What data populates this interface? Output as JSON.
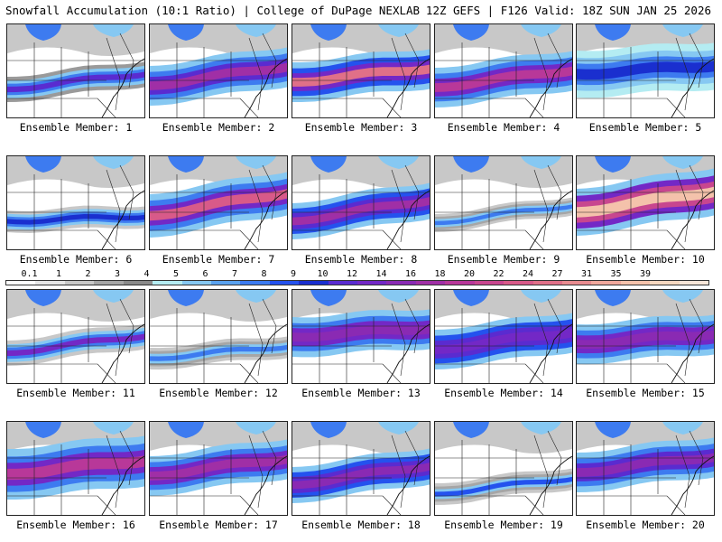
{
  "header": {
    "title": "Snowfall Accumulation (10:1 Ratio) | College of DuPage NEXLAB",
    "run_info": "12Z GEFS | F126 Valid: 18Z SUN JAN 25 2026"
  },
  "legend": {
    "labels": [
      "0.1",
      "1",
      "2",
      "3",
      "4",
      "5",
      "6",
      "7",
      "8",
      "9",
      "10",
      "12",
      "14",
      "16",
      "18",
      "20",
      "22",
      "24",
      "27",
      "31",
      "35",
      "39"
    ],
    "colors": [
      "#ffffff",
      "#e6e6e6",
      "#c8c8c8",
      "#a6a6a6",
      "#8a8a8a",
      "#b4ecf2",
      "#86c8f2",
      "#5aa2ef",
      "#3d7bf0",
      "#2452ee",
      "#1a2fcf",
      "#5a2bd0",
      "#7328c6",
      "#8a2ab3",
      "#a02fa6",
      "#b83899",
      "#c8468f",
      "#d85a89",
      "#e07088",
      "#e88c90",
      "#f0a89c",
      "#f4c2ab",
      "#f6d8c0",
      "#f8e6d8"
    ]
  },
  "members": [
    {
      "label": "Ensemble Member: 1"
    },
    {
      "label": "Ensemble Member: 2"
    },
    {
      "label": "Ensemble Member: 3"
    },
    {
      "label": "Ensemble Member: 4"
    },
    {
      "label": "Ensemble Member: 5"
    },
    {
      "label": "Ensemble Member: 6"
    },
    {
      "label": "Ensemble Member: 7"
    },
    {
      "label": "Ensemble Member: 8"
    },
    {
      "label": "Ensemble Member: 9"
    },
    {
      "label": "Ensemble Member: 10"
    },
    {
      "label": "Ensemble Member: 11"
    },
    {
      "label": "Ensemble Member: 12"
    },
    {
      "label": "Ensemble Member: 13"
    },
    {
      "label": "Ensemble Member: 14"
    },
    {
      "label": "Ensemble Member: 15"
    },
    {
      "label": "Ensemble Member: 16"
    },
    {
      "label": "Ensemble Member: 17"
    },
    {
      "label": "Ensemble Member: 18"
    },
    {
      "label": "Ensemble Member: 19"
    },
    {
      "label": "Ensemble Member: 20"
    }
  ]
}
